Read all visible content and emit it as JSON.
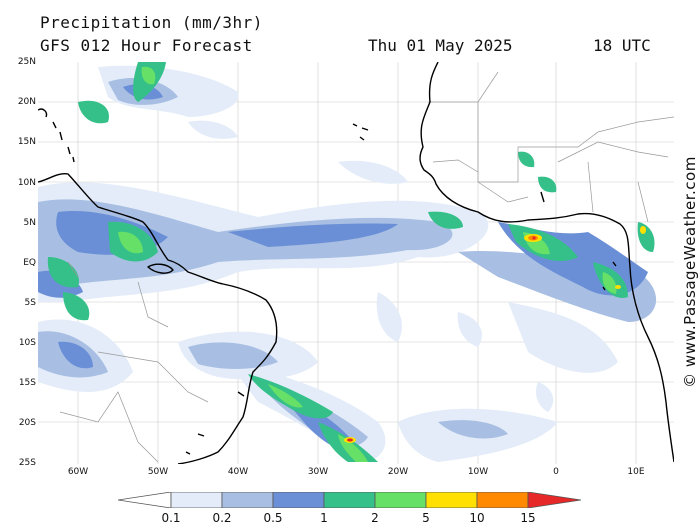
{
  "header": {
    "title": "Precipitation (mm/3hr)",
    "subtitle": "GFS 012 Hour Forecast",
    "datetime": "Thu 01 May 2025",
    "utc": "18 UTC"
  },
  "axes": {
    "lat_labels": [
      "25N",
      "20N",
      "15N",
      "10N",
      "5N",
      "EQ",
      "5S",
      "10S",
      "15S",
      "20S",
      "25S"
    ],
    "lon_labels": [
      "60W",
      "50W",
      "40W",
      "30W",
      "20W",
      "10W",
      "0",
      "10E"
    ]
  },
  "legend": {
    "ticks": [
      "0.1",
      "0.2",
      "0.5",
      "1",
      "2",
      "5",
      "10",
      "15"
    ],
    "colors": [
      "#ffffff",
      "#e3ecf8",
      "#a8bfe3",
      "#6a8fd6",
      "#35c08a",
      "#66e066",
      "#ffe000",
      "#ff8a00",
      "#e62828"
    ]
  },
  "credit": "© www.PassageWeather.com",
  "colors": {
    "land_fill": "#ffffff",
    "coastline": "#000000",
    "borders": "#999999",
    "grid": "#cccccc"
  }
}
